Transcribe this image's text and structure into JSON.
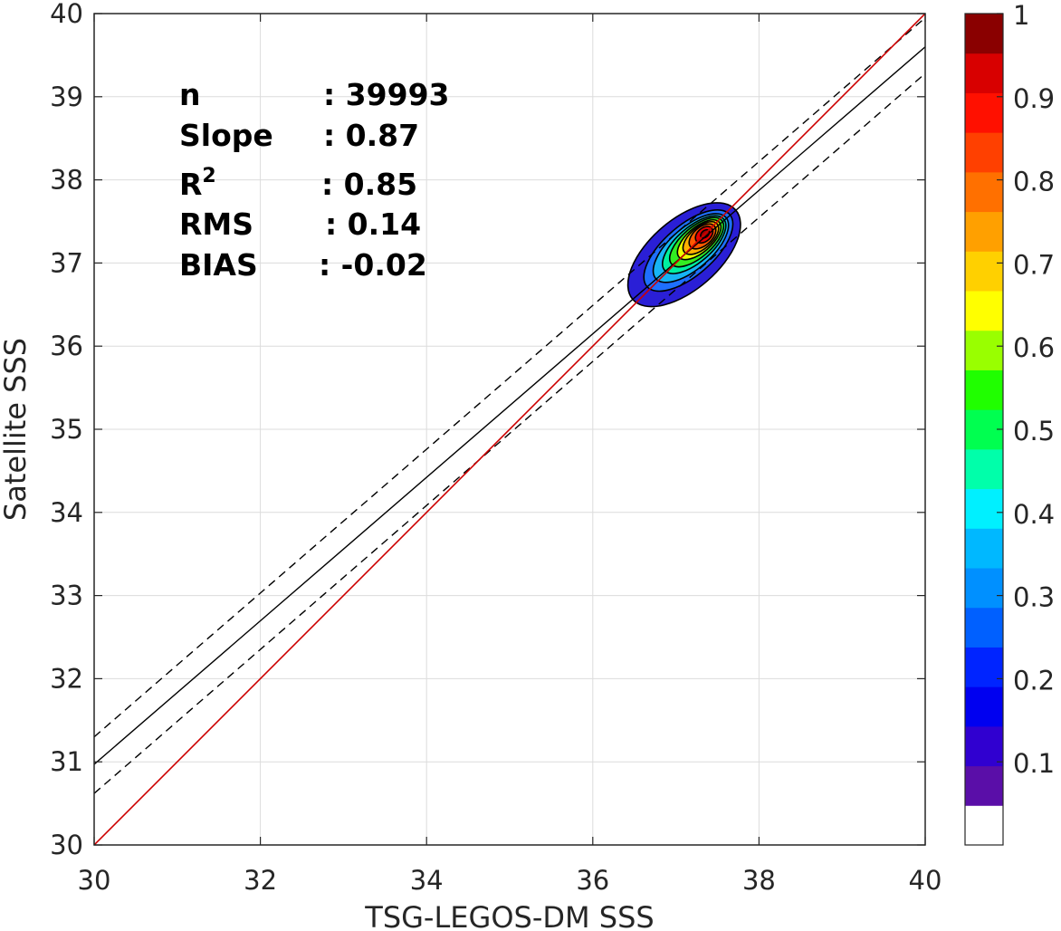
{
  "chart_data": {
    "type": "contour-scatter",
    "xlabel": "TSG-LEGOS-DM SSS",
    "ylabel": "Satellite SSS",
    "xlim": [
      30,
      40
    ],
    "ylim": [
      30,
      40
    ],
    "xticks": [
      "30",
      "32",
      "34",
      "36",
      "38",
      "40"
    ],
    "yticks": [
      "30",
      "31",
      "32",
      "33",
      "34",
      "35",
      "36",
      "37",
      "38",
      "39",
      "40"
    ],
    "grid": true,
    "stats": [
      {
        "name": "n",
        "value": ": 39993"
      },
      {
        "name": "Slope",
        "value": ": 0.87"
      },
      {
        "name": "R",
        "sup": "2",
        "value": ": 0.85"
      },
      {
        "name": "RMS",
        "value": ": 0.14"
      },
      {
        "name": "BIAS",
        "value": ": -0.02"
      }
    ],
    "reference_line": {
      "slope": 1,
      "intercept": 0,
      "color": "#cc0000"
    },
    "fit_line": {
      "x": [
        30,
        40
      ],
      "y": [
        30.97,
        39.6
      ],
      "color": "#000000"
    },
    "fit_upper": {
      "x": [
        30,
        40
      ],
      "y": [
        31.3,
        39.95
      ],
      "dash": true
    },
    "fit_lower": {
      "x": [
        30,
        40
      ],
      "y": [
        30.62,
        39.28
      ],
      "dash": true
    },
    "density_center": {
      "x": 37.35,
      "y": 37.33
    },
    "contour_levels": [
      {
        "level": 0.05,
        "rx": 0.82,
        "ry": 0.42,
        "cx": 37.1,
        "cy": 37.1,
        "color": "#2a1fd6"
      },
      {
        "level": 0.2,
        "rx": 0.66,
        "ry": 0.3,
        "cx": 37.15,
        "cy": 37.15,
        "color": "#1e6fff"
      },
      {
        "level": 0.3,
        "rx": 0.56,
        "ry": 0.25,
        "cx": 37.18,
        "cy": 37.18,
        "color": "#17b4f5"
      },
      {
        "level": 0.4,
        "rx": 0.47,
        "ry": 0.21,
        "cx": 37.22,
        "cy": 37.22,
        "color": "#00f0a0"
      },
      {
        "level": 0.5,
        "rx": 0.4,
        "ry": 0.18,
        "cx": 37.25,
        "cy": 37.25,
        "color": "#33ee22"
      },
      {
        "level": 0.6,
        "rx": 0.32,
        "ry": 0.15,
        "cx": 37.28,
        "cy": 37.28,
        "color": "#eeff00"
      },
      {
        "level": 0.7,
        "rx": 0.26,
        "ry": 0.13,
        "cx": 37.3,
        "cy": 37.3,
        "color": "#ffb000"
      },
      {
        "level": 0.8,
        "rx": 0.19,
        "ry": 0.11,
        "cx": 37.32,
        "cy": 37.32,
        "color": "#ff5a00"
      },
      {
        "level": 0.9,
        "rx": 0.12,
        "ry": 0.08,
        "cx": 37.34,
        "cy": 37.34,
        "color": "#e80000"
      },
      {
        "level": 0.95,
        "rx": 0.06,
        "ry": 0.04,
        "cx": 37.35,
        "cy": 37.35,
        "color": "#a00000"
      }
    ],
    "colorbar": {
      "ticks": [
        "0.1",
        "0.2",
        "0.3",
        "0.4",
        "0.5",
        "0.6",
        "0.7",
        "0.8",
        "0.9",
        "1"
      ],
      "tick_values": [
        0.1,
        0.2,
        0.3,
        0.4,
        0.5,
        0.6,
        0.7,
        0.8,
        0.9,
        1.0
      ],
      "colors": [
        "#ffffff",
        "#5a0ea8",
        "#3000d0",
        "#0000f0",
        "#0024ff",
        "#0060ff",
        "#0090ff",
        "#00b8ff",
        "#00f0ff",
        "#00ffaa",
        "#00ff50",
        "#20ff00",
        "#99ff00",
        "#ffff00",
        "#ffd000",
        "#ffa000",
        "#ff7000",
        "#ff4000",
        "#ff1000",
        "#d80000",
        "#8a0000"
      ]
    }
  }
}
